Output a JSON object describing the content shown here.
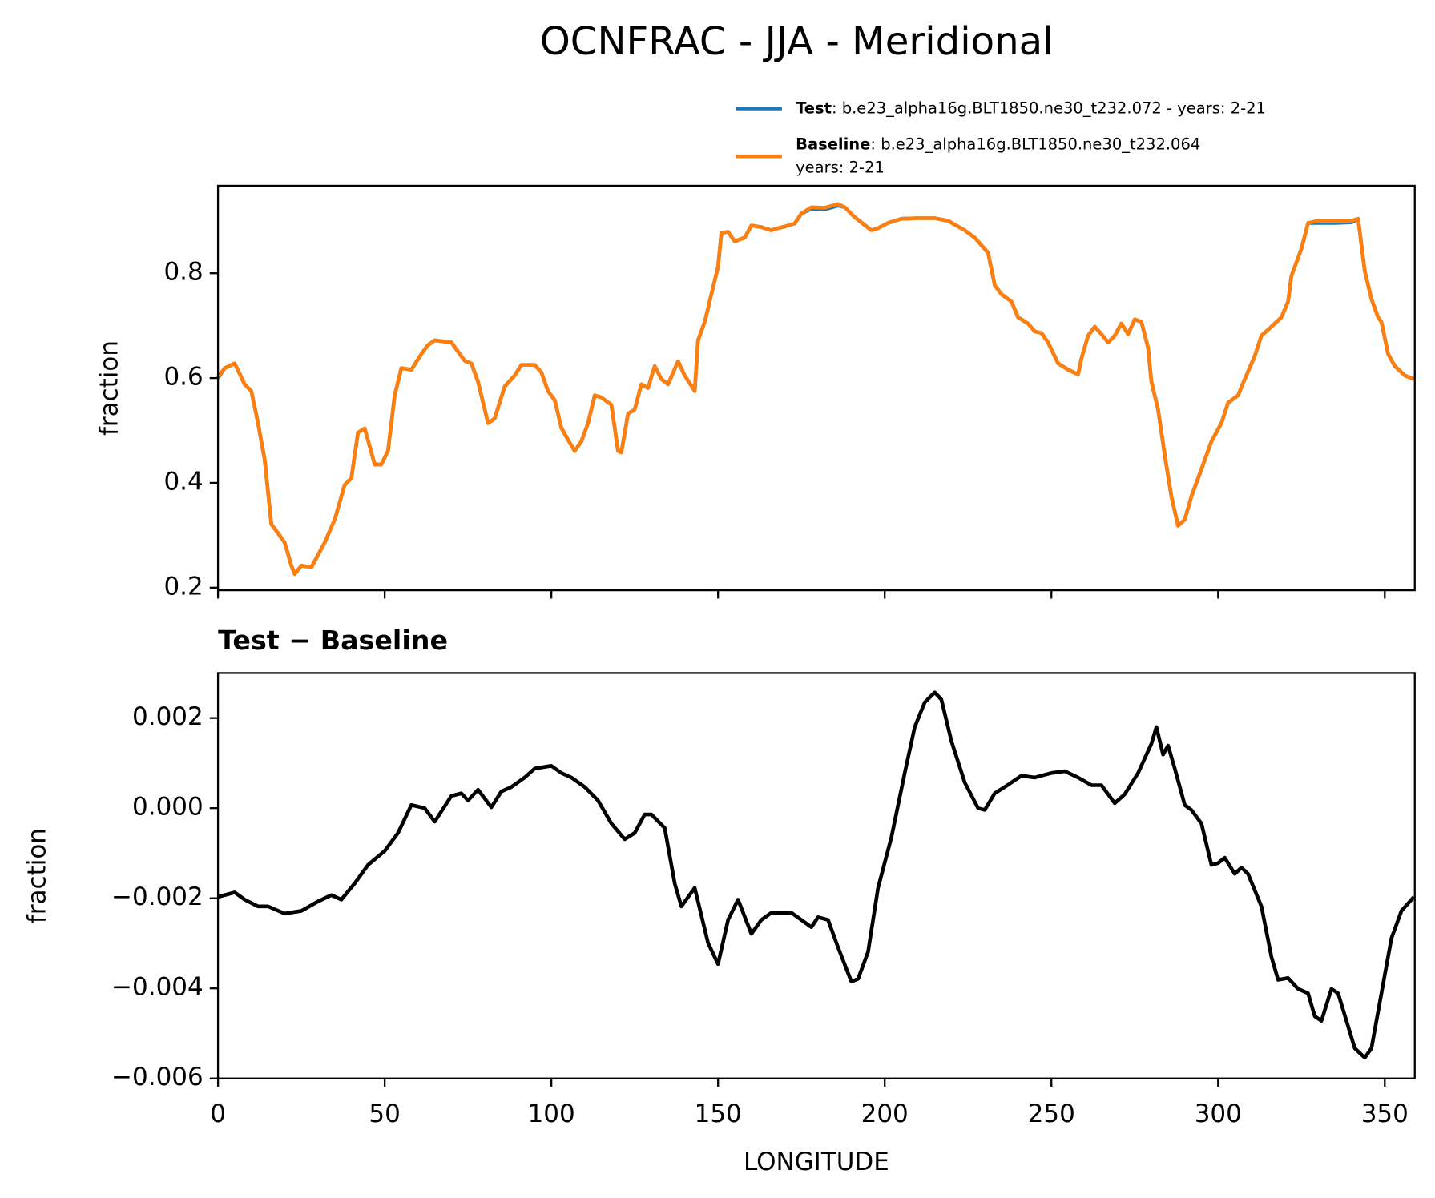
{
  "chart_data": [
    {
      "type": "line",
      "title": "OCNFRAC - JJA - Meridional",
      "ylabel": "fraction",
      "xlim": [
        0,
        359
      ],
      "ylim": [
        0.195,
        0.967
      ],
      "xticks": [
        0,
        50,
        100,
        150,
        200,
        250,
        300,
        350
      ],
      "yticks": [
        0.2,
        0.4,
        0.6,
        0.8
      ],
      "x": [
        0,
        2,
        5,
        8,
        10,
        12,
        14,
        16,
        18,
        20,
        22,
        23,
        25,
        28,
        32,
        35,
        38,
        40,
        42,
        44,
        47,
        49,
        51,
        53,
        55,
        58,
        61,
        63,
        65,
        70,
        74,
        76,
        78,
        81,
        83,
        86,
        89,
        91,
        95,
        97,
        99,
        101,
        103,
        105,
        107,
        109,
        111,
        113,
        115,
        118,
        120,
        121,
        123,
        125,
        127,
        129,
        131,
        133,
        135,
        138,
        140,
        143,
        144,
        146,
        149,
        150,
        151,
        153,
        155,
        158,
        160,
        163,
        166,
        168,
        170,
        173,
        175,
        178,
        182,
        186,
        188,
        191,
        196,
        198,
        201,
        205,
        210,
        215,
        219,
        224,
        227,
        231,
        233,
        235,
        238,
        240,
        243,
        245,
        247,
        249,
        252,
        255,
        258,
        259,
        261,
        263,
        265,
        267,
        269,
        271,
        273,
        275,
        277,
        279,
        280,
        282,
        284,
        286,
        288,
        290,
        292,
        295,
        298,
        301,
        303,
        306,
        308,
        311,
        313,
        316,
        319,
        321,
        322,
        325,
        327,
        330,
        335,
        340,
        342,
        344,
        346,
        348,
        349,
        351,
        353,
        356,
        358.75
      ],
      "series": [
        {
          "name": "Test",
          "description": [
            ": b.e23_alpha16g.BLT1850.ne30_t232.072 - years: 2-21"
          ],
          "color": "#1f77b4",
          "values": [
            0.6,
            0.619,
            0.628,
            0.588,
            0.575,
            0.514,
            0.444,
            0.321,
            0.304,
            0.286,
            0.242,
            0.226,
            0.242,
            0.239,
            0.286,
            0.33,
            0.396,
            0.409,
            0.496,
            0.504,
            0.435,
            0.435,
            0.461,
            0.567,
            0.619,
            0.616,
            0.646,
            0.663,
            0.672,
            0.668,
            0.633,
            0.628,
            0.593,
            0.514,
            0.523,
            0.584,
            0.605,
            0.625,
            0.625,
            0.611,
            0.575,
            0.558,
            0.505,
            0.482,
            0.461,
            0.479,
            0.514,
            0.567,
            0.563,
            0.549,
            0.461,
            0.458,
            0.532,
            0.54,
            0.588,
            0.581,
            0.623,
            0.598,
            0.588,
            0.632,
            0.605,
            0.575,
            0.672,
            0.707,
            0.786,
            0.812,
            0.877,
            0.879,
            0.861,
            0.868,
            0.891,
            0.888,
            0.882,
            0.886,
            0.889,
            0.895,
            0.914,
            0.923,
            0.922,
            0.929,
            0.926,
            0.907,
            0.882,
            0.886,
            0.896,
            0.904,
            0.905,
            0.905,
            0.9,
            0.882,
            0.868,
            0.839,
            0.777,
            0.76,
            0.746,
            0.716,
            0.704,
            0.689,
            0.686,
            0.668,
            0.628,
            0.616,
            0.607,
            0.637,
            0.681,
            0.698,
            0.684,
            0.668,
            0.681,
            0.704,
            0.684,
            0.712,
            0.707,
            0.658,
            0.593,
            0.54,
            0.453,
            0.374,
            0.318,
            0.33,
            0.374,
            0.426,
            0.479,
            0.514,
            0.553,
            0.567,
            0.598,
            0.642,
            0.681,
            0.698,
            0.716,
            0.746,
            0.795,
            0.847,
            0.896,
            0.896,
            0.896,
            0.897,
            0.904,
            0.804,
            0.751,
            0.716,
            0.707,
            0.646,
            0.623,
            0.605,
            0.598
          ]
        },
        {
          "name": "Baseline",
          "description": [
            ": b.e23_alpha16g.BLT1850.ne30_t232.064",
            "years: 2-21"
          ],
          "color": "#ff7f0e",
          "values": [
            0.602,
            0.619,
            0.628,
            0.588,
            0.575,
            0.514,
            0.444,
            0.321,
            0.304,
            0.286,
            0.242,
            0.226,
            0.242,
            0.239,
            0.286,
            0.33,
            0.396,
            0.409,
            0.496,
            0.504,
            0.435,
            0.435,
            0.461,
            0.567,
            0.619,
            0.616,
            0.646,
            0.663,
            0.672,
            0.668,
            0.633,
            0.628,
            0.593,
            0.514,
            0.523,
            0.584,
            0.605,
            0.625,
            0.625,
            0.611,
            0.575,
            0.558,
            0.505,
            0.482,
            0.461,
            0.479,
            0.514,
            0.567,
            0.563,
            0.549,
            0.461,
            0.458,
            0.532,
            0.54,
            0.588,
            0.581,
            0.623,
            0.598,
            0.588,
            0.632,
            0.605,
            0.575,
            0.672,
            0.707,
            0.786,
            0.812,
            0.877,
            0.879,
            0.861,
            0.868,
            0.891,
            0.888,
            0.882,
            0.886,
            0.889,
            0.895,
            0.914,
            0.926,
            0.925,
            0.932,
            0.926,
            0.907,
            0.882,
            0.886,
            0.896,
            0.904,
            0.905,
            0.905,
            0.9,
            0.882,
            0.868,
            0.839,
            0.777,
            0.76,
            0.746,
            0.716,
            0.704,
            0.689,
            0.686,
            0.668,
            0.628,
            0.616,
            0.607,
            0.637,
            0.681,
            0.698,
            0.684,
            0.668,
            0.681,
            0.704,
            0.684,
            0.712,
            0.707,
            0.658,
            0.593,
            0.54,
            0.453,
            0.374,
            0.318,
            0.33,
            0.374,
            0.426,
            0.479,
            0.514,
            0.553,
            0.567,
            0.598,
            0.642,
            0.681,
            0.698,
            0.716,
            0.746,
            0.795,
            0.847,
            0.896,
            0.9,
            0.9,
            0.9,
            0.904,
            0.804,
            0.751,
            0.716,
            0.707,
            0.646,
            0.623,
            0.605,
            0.598
          ]
        }
      ]
    },
    {
      "type": "line",
      "title": "Test − Baseline",
      "xlabel": "LONGITUDE",
      "ylabel": "fraction",
      "xlim": [
        0,
        359
      ],
      "ylim": [
        -0.006,
        0.003
      ],
      "xticks": [
        0,
        50,
        100,
        150,
        200,
        250,
        300,
        350
      ],
      "yticks": [
        {
          "value": -0.006,
          "label": "−0.006"
        },
        {
          "value": -0.004,
          "label": "−0.004"
        },
        {
          "value": -0.002,
          "label": "−0.002"
        },
        {
          "value": 0,
          "label": "0.000"
        },
        0.002
      ],
      "x": [
        0,
        5,
        8,
        12,
        15,
        20,
        25,
        30,
        34,
        37,
        41,
        45,
        50,
        54,
        58,
        62,
        65,
        70,
        73,
        75,
        78,
        82,
        85,
        88,
        92,
        95,
        100,
        103,
        106,
        110,
        114,
        118,
        122,
        125,
        128,
        130,
        134,
        137,
        139,
        143,
        147,
        150,
        153,
        156,
        160,
        163,
        166,
        172,
        175,
        178,
        180,
        183,
        186,
        190,
        192,
        195,
        198,
        202,
        206,
        209,
        212,
        215,
        217,
        220,
        224,
        228,
        230,
        233,
        236,
        241,
        245,
        250,
        254,
        258,
        262,
        265,
        269,
        272,
        276,
        280,
        281.5,
        283.5,
        285,
        287,
        290,
        292,
        295,
        298,
        300,
        302,
        305,
        307,
        309,
        313,
        316,
        318,
        321,
        324,
        327,
        329,
        331,
        334,
        336,
        341,
        344,
        346,
        349,
        352,
        355,
        358.75
      ],
      "series": [
        {
          "color": "#000000",
          "values": [
            -0.00197,
            -0.00187,
            -0.00203,
            -0.00218,
            -0.00218,
            -0.00234,
            -0.00228,
            -0.00207,
            -0.00193,
            -0.00203,
            -0.00167,
            -0.00126,
            -0.00095,
            -0.00055,
            7e-05,
            0.0,
            -0.0003,
            0.00027,
            0.00033,
            0.00017,
            0.00041,
            2e-05,
            0.00037,
            0.00047,
            0.00068,
            0.00088,
            0.00094,
            0.00078,
            0.00068,
            0.00047,
            0.00017,
            -0.00034,
            -0.00069,
            -0.00055,
            -0.00014,
            -0.00014,
            -0.00044,
            -0.00167,
            -0.00218,
            -0.00177,
            -0.00299,
            -0.00346,
            -0.00248,
            -0.00203,
            -0.00279,
            -0.00248,
            -0.00232,
            -0.00232,
            -0.00248,
            -0.00264,
            -0.00242,
            -0.00248,
            -0.00309,
            -0.00385,
            -0.00379,
            -0.00319,
            -0.00177,
            -0.00065,
            0.00078,
            0.0018,
            0.00235,
            0.00257,
            0.00241,
            0.00149,
            0.00057,
            0.0,
            -4e-05,
            0.00033,
            0.00047,
            0.00072,
            0.00068,
            0.00078,
            0.00082,
            0.00068,
            0.00051,
            0.00051,
            0.00011,
            0.00031,
            0.00078,
            0.00143,
            0.0018,
            0.00119,
            0.00139,
            0.00088,
            7e-05,
            -4e-05,
            -0.00034,
            -0.00126,
            -0.00122,
            -0.0011,
            -0.00146,
            -0.00132,
            -0.00146,
            -0.00218,
            -0.0033,
            -0.00381,
            -0.00377,
            -0.00401,
            -0.00411,
            -0.00462,
            -0.00472,
            -0.00401,
            -0.00411,
            -0.00533,
            -0.00554,
            -0.00533,
            -0.00411,
            -0.00289,
            -0.00228,
            -0.00197
          ]
        }
      ]
    }
  ]
}
